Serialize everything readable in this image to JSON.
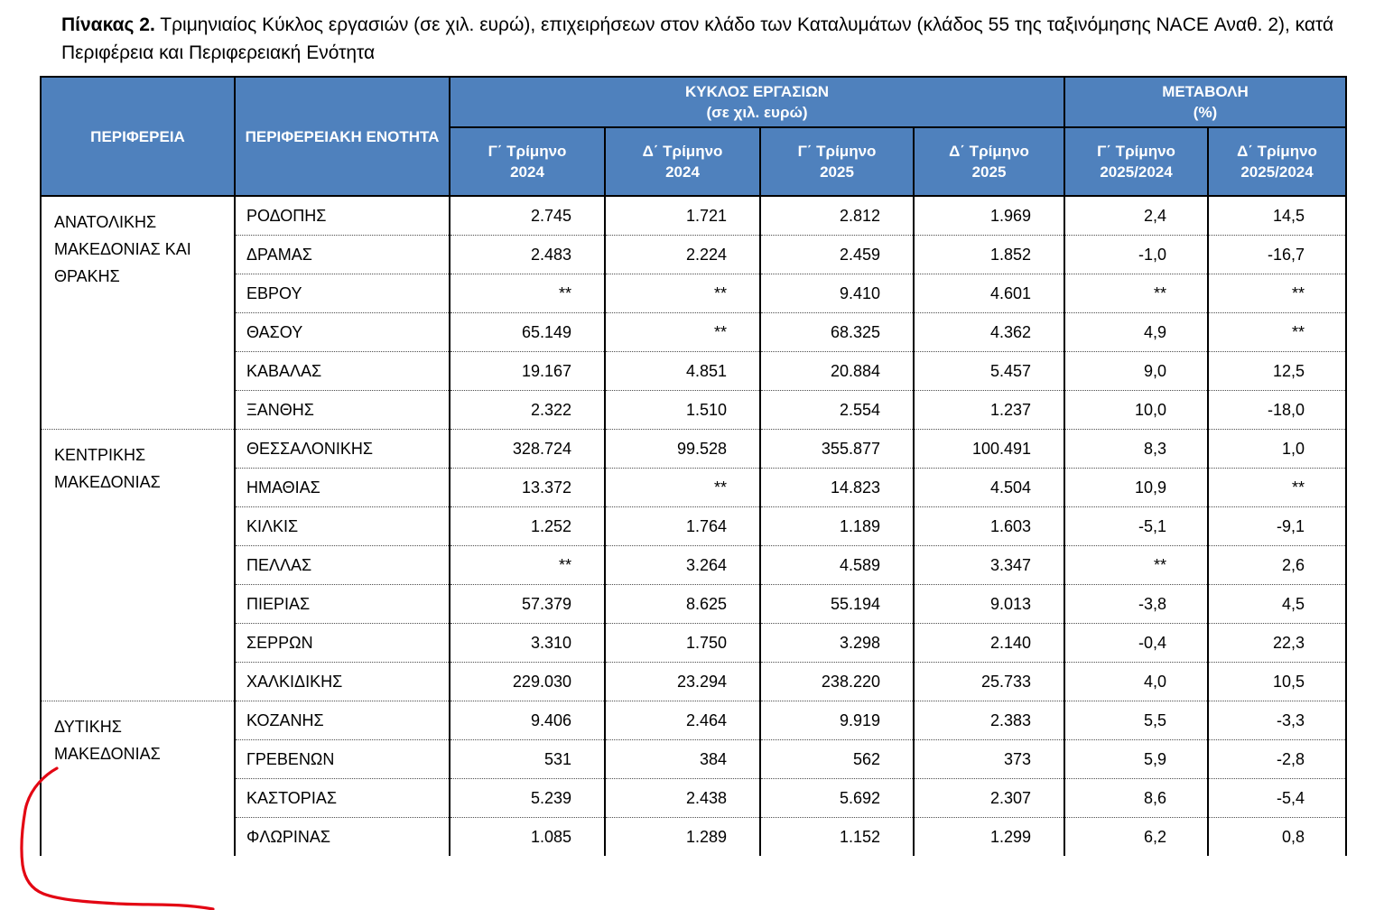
{
  "title": {
    "label": "Πίνακας 2.",
    "text": "Τριμηνιαίος Κύκλος εργασιών (σε χιλ. ευρώ), επιχειρήσεων στον κλάδο των Καταλυμάτων (κλάδος 55 της ταξινόμησης NACE Αναθ. 2), κατά Περιφέρεια και Περιφερειακή Ενότητα"
  },
  "colors": {
    "header_bg": "#4f81bd",
    "header_text": "#ffffff",
    "grid_border": "#000000",
    "row_divider": "#4d4d4d",
    "annotation_red": "#e30613"
  },
  "table": {
    "headers": {
      "region": "ΠΕΡΙΦΕΡΕΙΑ",
      "unit": "ΠΕΡΙΦΕΡΕΙΑΚΗ ΕΝΟΤΗΤΑ",
      "turnover_group_line1": "ΚΥΚΛΟΣ ΕΡΓΑΣΙΩΝ",
      "turnover_group_line2": "(σε χιλ. ευρώ)",
      "change_group_line1": "ΜΕΤΑΒΟΛΗ",
      "change_group_line2": "(%)",
      "sub": [
        {
          "line1": "Γ΄ Τρίμηνο",
          "line2": "2024"
        },
        {
          "line1": "Δ΄ Τρίμηνο",
          "line2": "2024"
        },
        {
          "line1": "Γ΄ Τρίμηνο",
          "line2": "2025"
        },
        {
          "line1": "Δ΄ Τρίμηνο",
          "line2": "2025"
        },
        {
          "line1": "Γ΄ Τρίμηνο",
          "line2": "2025/2024"
        },
        {
          "line1": "Δ΄ Τρίμηνο",
          "line2": "2025/2024"
        }
      ]
    },
    "regions": [
      {
        "name": "ΑΝΑΤΟΛΙΚΗΣ ΜΑΚΕΔΟΝΙΑΣ ΚΑΙ ΘΡΑΚΗΣ",
        "rows": [
          {
            "unit": "ΡΟΔΟΠΗΣ",
            "values": [
              "2.745",
              "1.721",
              "2.812",
              "1.969",
              "2,4",
              "14,5"
            ]
          },
          {
            "unit": "ΔΡΑΜΑΣ",
            "values": [
              "2.483",
              "2.224",
              "2.459",
              "1.852",
              "-1,0",
              "-16,7"
            ]
          },
          {
            "unit": "ΕΒΡΟΥ",
            "values": [
              "**",
              "**",
              "9.410",
              "4.601",
              "**",
              "**"
            ]
          },
          {
            "unit": "ΘΑΣΟΥ",
            "values": [
              "65.149",
              "**",
              "68.325",
              "4.362",
              "4,9",
              "**"
            ]
          },
          {
            "unit": "ΚΑΒΑΛΑΣ",
            "values": [
              "19.167",
              "4.851",
              "20.884",
              "5.457",
              "9,0",
              "12,5"
            ]
          },
          {
            "unit": "ΞΑΝΘΗΣ",
            "values": [
              "2.322",
              "1.510",
              "2.554",
              "1.237",
              "10,0",
              "-18,0"
            ]
          }
        ]
      },
      {
        "name": "ΚΕΝΤΡΙΚΗΣ ΜΑΚΕΔΟΝΙΑΣ",
        "rows": [
          {
            "unit": "ΘΕΣΣΑΛΟΝΙΚΗΣ",
            "values": [
              "328.724",
              "99.528",
              "355.877",
              "100.491",
              "8,3",
              "1,0"
            ]
          },
          {
            "unit": "ΗΜΑΘΙΑΣ",
            "values": [
              "13.372",
              "**",
              "14.823",
              "4.504",
              "10,9",
              "**"
            ]
          },
          {
            "unit": "ΚΙΛΚΙΣ",
            "values": [
              "1.252",
              "1.764",
              "1.189",
              "1.603",
              "-5,1",
              "-9,1"
            ]
          },
          {
            "unit": "ΠΕΛΛΑΣ",
            "values": [
              "**",
              "3.264",
              "4.589",
              "3.347",
              "**",
              "2,6"
            ]
          },
          {
            "unit": "ΠΙΕΡΙΑΣ",
            "values": [
              "57.379",
              "8.625",
              "55.194",
              "9.013",
              "-3,8",
              "4,5"
            ]
          },
          {
            "unit": "ΣΕΡΡΩΝ",
            "values": [
              "3.310",
              "1.750",
              "3.298",
              "2.140",
              "-0,4",
              "22,3"
            ]
          },
          {
            "unit": "ΧΑΛΚΙΔΙΚΗΣ",
            "values": [
              "229.030",
              "23.294",
              "238.220",
              "25.733",
              "4,0",
              "10,5"
            ]
          }
        ]
      },
      {
        "name": "ΔΥΤΙΚΗΣ ΜΑΚΕΔΟΝΙΑΣ",
        "rows": [
          {
            "unit": "ΚΟΖΑΝΗΣ",
            "values": [
              "9.406",
              "2.464",
              "9.919",
              "2.383",
              "5,5",
              "-3,3"
            ]
          },
          {
            "unit": "ΓΡΕΒΕΝΩΝ",
            "values": [
              "531",
              "384",
              "562",
              "373",
              "5,9",
              "-2,8"
            ]
          },
          {
            "unit": "ΚΑΣΤΟΡΙΑΣ",
            "values": [
              "5.239",
              "2.438",
              "5.692",
              "2.307",
              "8,6",
              "-5,4"
            ]
          },
          {
            "unit": "ΦΛΩΡΙΝΑΣ",
            "values": [
              "1.085",
              "1.289",
              "1.152",
              "1.299",
              "6,2",
              "0,8"
            ]
          }
        ]
      }
    ]
  },
  "annotation": {
    "type": "hand-drawn-red-curve",
    "color": "#e30613"
  }
}
